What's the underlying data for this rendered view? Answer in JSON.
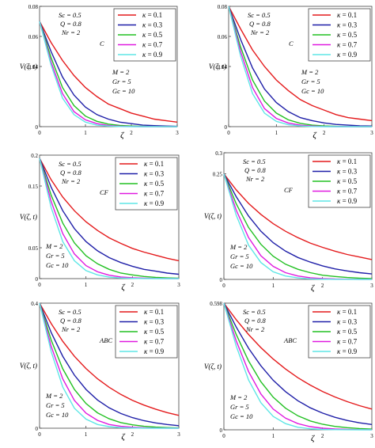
{
  "figure": {
    "colors": [
      "#e41a1c",
      "#1f1fa8",
      "#22c022",
      "#e01ae0",
      "#5fe6e6"
    ],
    "kappa_labels": [
      "0.1",
      "0.3",
      "0.5",
      "0.7",
      "0.9"
    ],
    "x_label": "ζ",
    "y_label": "V(ζ, t)"
  },
  "chart_data": [
    {
      "type": "line",
      "panel": "top-left",
      "xlim": [
        0,
        3
      ],
      "ylim": [
        0,
        0.08
      ],
      "xtick_labels": [
        "0",
        "1",
        "2",
        "3"
      ],
      "ytick_values": [
        0,
        0.04,
        0.06,
        0.08
      ],
      "ytick_labels": [
        "0",
        "0.04",
        "0.06",
        "0.08"
      ],
      "params_top": [
        "Sc = 0.5",
        "Q = 0.8",
        "Nr = 2"
      ],
      "model_label": "C",
      "params_bottom": [
        "M = 2",
        "Gr = 5",
        "Gc = 10"
      ],
      "legend_pos": "top-right",
      "x": [
        0,
        0.25,
        0.5,
        0.75,
        1,
        1.25,
        1.5,
        1.75,
        2,
        2.25,
        2.5,
        2.75,
        3
      ],
      "series": [
        {
          "name": "κ = 0.1",
          "values": [
            0.07,
            0.056,
            0.044,
            0.034,
            0.026,
            0.02,
            0.015,
            0.012,
            0.009,
            0.007,
            0.005,
            0.004,
            0.003
          ]
        },
        {
          "name": "κ = 0.3",
          "values": [
            0.07,
            0.05,
            0.033,
            0.021,
            0.013,
            0.008,
            0.005,
            0.003,
            0.002,
            0.001,
            0.0007,
            0.0004,
            0.0002
          ]
        },
        {
          "name": "κ = 0.5",
          "values": [
            0.07,
            0.046,
            0.026,
            0.014,
            0.007,
            0.0035,
            0.0017,
            0.0008,
            0.0004,
            0.0002,
            0.0001,
            0,
            0
          ]
        },
        {
          "name": "κ = 0.7",
          "values": [
            0.07,
            0.043,
            0.022,
            0.01,
            0.0045,
            0.002,
            0.0008,
            0.0003,
            0.0001,
            0,
            0,
            0,
            0
          ]
        },
        {
          "name": "κ = 0.9",
          "values": [
            0.07,
            0.041,
            0.019,
            0.008,
            0.003,
            0.001,
            0.0004,
            0.0001,
            0,
            0,
            0,
            0,
            0
          ]
        }
      ]
    },
    {
      "type": "line",
      "panel": "top-right",
      "xlim": [
        0,
        3
      ],
      "ylim": [
        0,
        0.08
      ],
      "xtick_labels": [
        "0",
        "1",
        "2",
        "3"
      ],
      "ytick_values": [
        0,
        0.04,
        0.06,
        0.08
      ],
      "ytick_labels": [
        "0",
        "0.04",
        "0.06",
        "0.08"
      ],
      "params_top": [
        "Sc = 0.5",
        "Q = 0.8",
        "Nr = 2"
      ],
      "model_label": "C",
      "params_bottom": [
        "M = 2",
        "Gr = 5",
        "Gc = 10"
      ],
      "legend_pos": "top-right",
      "x": [
        0,
        0.25,
        0.5,
        0.75,
        1,
        1.25,
        1.5,
        1.75,
        2,
        2.25,
        2.5,
        2.75,
        3
      ],
      "series": [
        {
          "name": "κ = 0.1",
          "values": [
            0.08,
            0.065,
            0.051,
            0.04,
            0.031,
            0.024,
            0.018,
            0.014,
            0.011,
            0.008,
            0.006,
            0.005,
            0.004
          ]
        },
        {
          "name": "κ = 0.3",
          "values": [
            0.08,
            0.058,
            0.039,
            0.025,
            0.016,
            0.01,
            0.006,
            0.004,
            0.0025,
            0.0015,
            0.001,
            0.0006,
            0.0004
          ]
        },
        {
          "name": "κ = 0.5",
          "values": [
            0.08,
            0.053,
            0.031,
            0.017,
            0.009,
            0.0045,
            0.0022,
            0.001,
            0.0005,
            0.0002,
            0.0001,
            0,
            0
          ]
        },
        {
          "name": "κ = 0.7",
          "values": [
            0.08,
            0.05,
            0.026,
            0.012,
            0.0055,
            0.0024,
            0.001,
            0.0004,
            0.0001,
            0,
            0,
            0,
            0
          ]
        },
        {
          "name": "κ = 0.9",
          "values": [
            0.08,
            0.047,
            0.022,
            0.009,
            0.0035,
            0.0013,
            0.0005,
            0.0001,
            0,
            0,
            0,
            0,
            0
          ]
        }
      ]
    },
    {
      "type": "line",
      "panel": "middle-left",
      "xlim": [
        0,
        3
      ],
      "ylim": [
        0,
        0.2
      ],
      "xtick_labels": [
        "0",
        "1",
        "2",
        "3"
      ],
      "ytick_values": [
        0,
        0.05,
        0.15,
        0.2
      ],
      "ytick_labels": [
        "0",
        "0.05",
        "0.15",
        "0.2"
      ],
      "params_top": [
        "Sc = 0.5",
        "Q = 0.8",
        "Nr = 2"
      ],
      "model_label": "CF",
      "params_bottom": [
        "M = 2",
        "Gr = 5",
        "Gc = 10"
      ],
      "legend_pos": "top-right",
      "x": [
        0,
        0.25,
        0.5,
        0.75,
        1,
        1.25,
        1.5,
        1.75,
        2,
        2.25,
        2.5,
        2.75,
        3
      ],
      "series": [
        {
          "name": "κ = 0.1",
          "values": [
            0.195,
            0.16,
            0.132,
            0.11,
            0.092,
            0.078,
            0.066,
            0.057,
            0.049,
            0.043,
            0.038,
            0.033,
            0.029
          ]
        },
        {
          "name": "κ = 0.3",
          "values": [
            0.195,
            0.148,
            0.11,
            0.081,
            0.06,
            0.045,
            0.034,
            0.026,
            0.02,
            0.015,
            0.012,
            0.009,
            0.007
          ]
        },
        {
          "name": "κ = 0.5",
          "values": [
            0.195,
            0.135,
            0.09,
            0.058,
            0.037,
            0.024,
            0.015,
            0.009,
            0.006,
            0.0035,
            0.002,
            0.0012,
            0.0007
          ]
        },
        {
          "name": "κ = 0.7",
          "values": [
            0.195,
            0.125,
            0.073,
            0.04,
            0.021,
            0.011,
            0.0055,
            0.0027,
            0.0013,
            0.0006,
            0.0003,
            0.0001,
            0
          ]
        },
        {
          "name": "κ = 0.9",
          "values": [
            0.195,
            0.115,
            0.06,
            0.029,
            0.013,
            0.006,
            0.0025,
            0.001,
            0.0004,
            0.0001,
            0,
            0,
            0
          ]
        }
      ]
    },
    {
      "type": "line",
      "panel": "middle-right",
      "xlim": [
        0,
        3
      ],
      "ylim": [
        0,
        0.3
      ],
      "xtick_labels": [
        "0",
        "1",
        "2",
        "3"
      ],
      "ytick_values": [
        0,
        0.25,
        0.3
      ],
      "ytick_labels": [
        "0",
        "0.25",
        "0.3"
      ],
      "params_top": [
        "Sc = 0.5",
        "Q = 0.8",
        "Nr = 2"
      ],
      "model_label": "CF",
      "params_bottom": [
        "M = 2",
        "Gr = 5",
        "Gc = 10"
      ],
      "legend_pos": "top-right",
      "x": [
        0,
        0.25,
        0.5,
        0.75,
        1,
        1.25,
        1.5,
        1.75,
        2,
        2.25,
        2.5,
        2.75,
        3
      ],
      "series": [
        {
          "name": "κ = 0.1",
          "values": [
            0.25,
            0.212,
            0.18,
            0.154,
            0.132,
            0.114,
            0.099,
            0.086,
            0.076,
            0.067,
            0.059,
            0.053,
            0.047
          ]
        },
        {
          "name": "κ = 0.3",
          "values": [
            0.25,
            0.196,
            0.15,
            0.114,
            0.087,
            0.067,
            0.052,
            0.041,
            0.032,
            0.025,
            0.02,
            0.016,
            0.013
          ]
        },
        {
          "name": "κ = 0.5",
          "values": [
            0.25,
            0.179,
            0.123,
            0.083,
            0.055,
            0.036,
            0.024,
            0.016,
            0.01,
            0.007,
            0.0045,
            0.003,
            0.002
          ]
        },
        {
          "name": "κ = 0.7",
          "values": [
            0.25,
            0.164,
            0.099,
            0.056,
            0.031,
            0.016,
            0.008,
            0.004,
            0.002,
            0.001,
            0.0005,
            0.0002,
            0.0001
          ]
        },
        {
          "name": "κ = 0.9",
          "values": [
            0.25,
            0.152,
            0.081,
            0.04,
            0.018,
            0.008,
            0.0035,
            0.0014,
            0.0006,
            0.0002,
            0.0001,
            0,
            0
          ]
        }
      ]
    },
    {
      "type": "line",
      "panel": "bottom-left",
      "xlim": [
        0,
        3
      ],
      "ylim": [
        0,
        0.4
      ],
      "xtick_labels": [
        "0",
        "1",
        "2",
        "3"
      ],
      "ytick_values": [
        0,
        0.4
      ],
      "ytick_labels": [
        "0",
        "0.4"
      ],
      "params_top": [
        "Sc = 0.5",
        "Q = 0.8",
        "Nr = 2"
      ],
      "model_label": "ABC",
      "params_bottom": [
        "M = 2",
        "Gr = 5",
        "Gc = 10"
      ],
      "legend_pos": "top-right",
      "x": [
        0,
        0.25,
        0.5,
        0.75,
        1,
        1.25,
        1.5,
        1.75,
        2,
        2.25,
        2.5,
        2.75,
        3
      ],
      "series": [
        {
          "name": "κ = 0.1",
          "values": [
            0.4,
            0.335,
            0.278,
            0.23,
            0.191,
            0.158,
            0.131,
            0.108,
            0.089,
            0.074,
            0.061,
            0.05,
            0.041
          ]
        },
        {
          "name": "κ = 0.3",
          "values": [
            0.4,
            0.306,
            0.23,
            0.17,
            0.124,
            0.09,
            0.065,
            0.047,
            0.034,
            0.024,
            0.017,
            0.012,
            0.008
          ]
        },
        {
          "name": "κ = 0.5",
          "values": [
            0.4,
            0.282,
            0.19,
            0.124,
            0.079,
            0.049,
            0.03,
            0.018,
            0.011,
            0.006,
            0.0035,
            0.002,
            0.001
          ]
        },
        {
          "name": "κ = 0.7",
          "values": [
            0.4,
            0.262,
            0.158,
            0.089,
            0.048,
            0.025,
            0.012,
            0.006,
            0.003,
            0.0013,
            0.0006,
            0.0003,
            0.0001
          ]
        },
        {
          "name": "κ = 0.9",
          "values": [
            0.4,
            0.245,
            0.132,
            0.064,
            0.029,
            0.012,
            0.005,
            0.002,
            0.0007,
            0.0002,
            0.0001,
            0,
            0
          ]
        }
      ]
    },
    {
      "type": "line",
      "panel": "bottom-right",
      "xlim": [
        0,
        3
      ],
      "ylim": [
        0,
        0.598
      ],
      "xtick_labels": [
        "0",
        "1",
        "2",
        "3"
      ],
      "ytick_values": [
        0,
        0.598
      ],
      "ytick_labels": [
        "0",
        "0.598"
      ],
      "params_top": [
        "Sc = 0.5",
        "Q = 0.8",
        "Nr = 2"
      ],
      "model_label": "ABC",
      "params_bottom": [
        "M = 2",
        "Gr = 5",
        "Gc = 10"
      ],
      "legend_pos": "top-right",
      "x": [
        0,
        0.25,
        0.5,
        0.75,
        1,
        1.25,
        1.5,
        1.75,
        2,
        2.25,
        2.5,
        2.75,
        3
      ],
      "series": [
        {
          "name": "κ = 0.1",
          "values": [
            0.598,
            0.52,
            0.45,
            0.388,
            0.334,
            0.287,
            0.246,
            0.211,
            0.181,
            0.155,
            0.133,
            0.114,
            0.098
          ]
        },
        {
          "name": "κ = 0.3",
          "values": [
            0.598,
            0.485,
            0.385,
            0.302,
            0.234,
            0.18,
            0.137,
            0.104,
            0.079,
            0.059,
            0.044,
            0.033,
            0.025
          ]
        },
        {
          "name": "κ = 0.5",
          "values": [
            0.598,
            0.45,
            0.325,
            0.227,
            0.154,
            0.102,
            0.066,
            0.042,
            0.026,
            0.016,
            0.01,
            0.006,
            0.0035
          ]
        },
        {
          "name": "κ = 0.7",
          "values": [
            0.598,
            0.42,
            0.275,
            0.169,
            0.098,
            0.055,
            0.029,
            0.015,
            0.0075,
            0.0036,
            0.0017,
            0.0008,
            0.0004
          ]
        },
        {
          "name": "κ = 0.9",
          "values": [
            0.598,
            0.395,
            0.235,
            0.128,
            0.063,
            0.029,
            0.012,
            0.005,
            0.002,
            0.0008,
            0.0003,
            0.0001,
            0
          ]
        }
      ]
    }
  ]
}
